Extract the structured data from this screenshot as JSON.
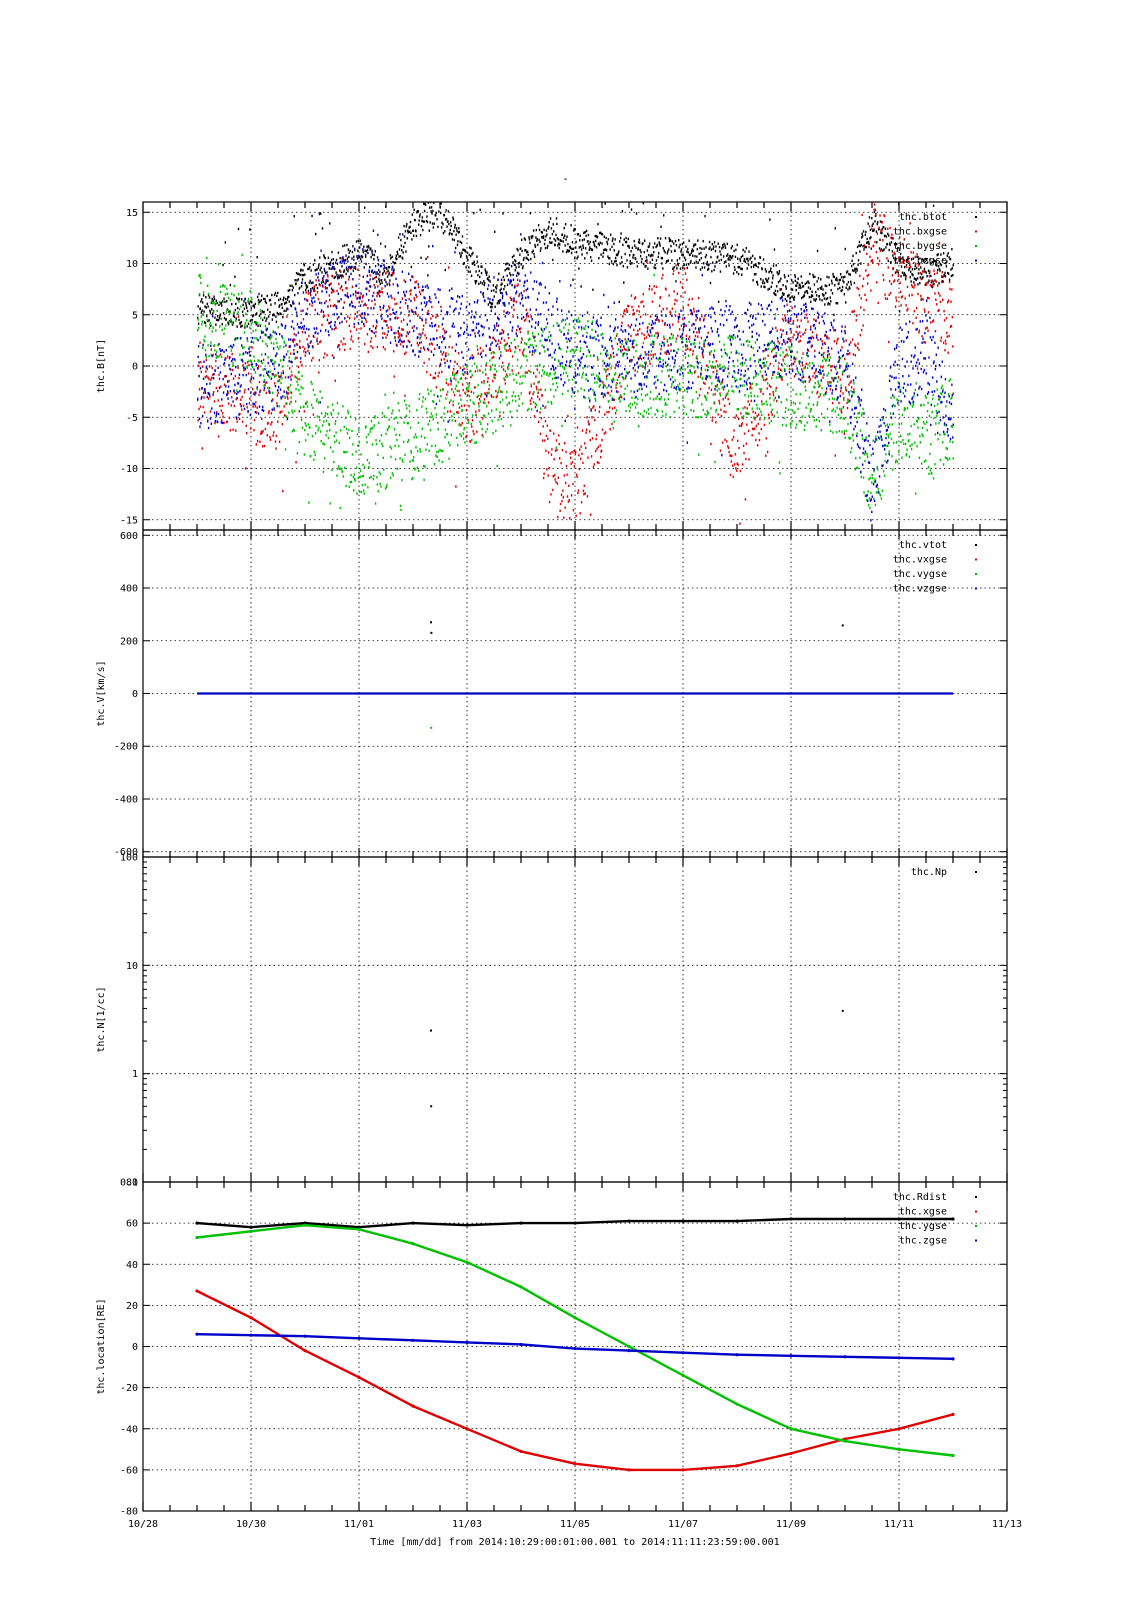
{
  "page_title": "-",
  "x_axis": {
    "tick_labels": [
      "10/28",
      "10/30",
      "11/01",
      "11/03",
      "11/05",
      "11/07",
      "11/09",
      "11/11",
      "11/13"
    ],
    "xlabel": "Time [mm/dd]  from 2014:10:29:00:01:00.001  to  2014:11:11:23:59:00.001"
  },
  "chart_data": [
    {
      "type": "scatter",
      "ylabel": "thc.B[nT]",
      "ylim": [
        -16,
        16
      ],
      "yticks": [
        "15",
        "10",
        "5",
        "0",
        "-5",
        "-10",
        "-15"
      ],
      "xlim": [
        "10/28",
        "11/13"
      ],
      "grid": true,
      "legend_position": "top-right",
      "series": [
        {
          "name": "thc.btot",
          "color": "#000000",
          "x": [
            "10/29",
            "10/30",
            "10/30 12:00",
            "10/31",
            "11/01",
            "11/01 12:00",
            "11/02",
            "11/02 12:00",
            "11/03 12:00",
            "11/04",
            "11/04 12:00",
            "11/05",
            "11/06",
            "11/07",
            "11/08",
            "11/09",
            "11/10",
            "11/10 12:00",
            "11/11",
            "11/11 12:00",
            "11/12"
          ],
          "values": [
            5.5,
            5.2,
            5.8,
            8.5,
            11,
            9,
            14,
            15,
            6.5,
            11,
            13,
            12,
            11,
            11,
            10.5,
            7.5,
            7.5,
            14,
            10,
            9,
            10
          ]
        },
        {
          "name": "thc.bxgse",
          "color": "#e00000",
          "x": [
            "10/29",
            "10/30",
            "10/30 12:00",
            "10/31",
            "11/01",
            "11/02",
            "11/03",
            "11/04",
            "11/04 12:00",
            "11/05",
            "11/06",
            "11/07",
            "11/08",
            "11/09",
            "11/10",
            "11/10 12:00",
            "11/11",
            "11/11 12:00",
            "11/12"
          ],
          "values": [
            -1.5,
            -3.5,
            -4.5,
            4,
            6,
            5,
            -4,
            5,
            -10,
            -12,
            3,
            6,
            -8,
            3,
            -1,
            12,
            9,
            6,
            5
          ]
        },
        {
          "name": "thc.bygse",
          "color": "#00c000",
          "x": [
            "10/29",
            "10/30",
            "10/30 12:00",
            "10/31",
            "11/01",
            "11/02",
            "11/03",
            "11/04",
            "11/05",
            "11/06",
            "11/07",
            "11/08",
            "11/09",
            "11/10",
            "11/10 12:00",
            "11/11",
            "11/11 12:00",
            "11/12"
          ],
          "values": [
            5,
            3.5,
            0,
            -5,
            -9,
            -7,
            -4,
            -1,
            1,
            -1,
            -1,
            -1,
            -2,
            -3,
            -11,
            -5,
            -7,
            -5
          ]
        },
        {
          "name": "thc.bzgse",
          "color": "#0000c8",
          "x": [
            "10/29",
            "10/30",
            "10/30 12:00",
            "10/31",
            "11/01",
            "11/02",
            "11/03",
            "11/04",
            "11/05",
            "11/06",
            "11/07",
            "11/08",
            "11/09",
            "11/10",
            "11/10 12:00",
            "11/11",
            "11/11 12:00",
            "11/12"
          ],
          "values": [
            -2,
            -1,
            0,
            5,
            8,
            5,
            3,
            6,
            1,
            0.5,
            1.5,
            2,
            3,
            0,
            -12,
            0,
            1,
            -5
          ]
        }
      ]
    },
    {
      "type": "scatter",
      "ylabel": "thc.V[km/s]",
      "ylim": [
        -620,
        620
      ],
      "yticks": [
        "600",
        "400",
        "200",
        "0",
        "-200",
        "-400",
        "-600"
      ],
      "xlim": [
        "10/28",
        "11/13"
      ],
      "grid": true,
      "legend_position": "top-right",
      "series": [
        {
          "name": "thc.vtot",
          "color": "#000000",
          "x": [
            "11/02 08:00",
            "11/02 08:10",
            "11/09 23:00"
          ],
          "values": [
            270,
            230,
            258
          ]
        },
        {
          "name": "thc.vxgse",
          "color": "#e00000",
          "x": [],
          "values": []
        },
        {
          "name": "thc.vygse",
          "color": "#00c000",
          "x": [
            "11/02 08:05"
          ],
          "values": [
            -130
          ]
        },
        {
          "name": "thc.vzgse",
          "color": "#0000c8",
          "x": [
            "10/29",
            "11/12"
          ],
          "values": [
            0,
            0
          ]
        }
      ]
    },
    {
      "type": "scatter",
      "ylabel": "thc.N[1/cc]",
      "yscale": "log",
      "ylim": [
        0.1,
        100
      ],
      "yticks": [
        "100",
        "10",
        "1",
        "0.1"
      ],
      "xlim": [
        "10/28",
        "11/13"
      ],
      "grid": true,
      "legend_position": "top-right",
      "series": [
        {
          "name": "thc.Np",
          "color": "#000000",
          "x": [
            "11/02 08:00",
            "11/02 08:05",
            "11/09 23:00"
          ],
          "values": [
            2.5,
            0.5,
            3.8
          ]
        }
      ]
    },
    {
      "type": "line",
      "ylabel": "thc.location[RE]",
      "ylim": [
        -80,
        80
      ],
      "yticks": [
        "80",
        "60",
        "40",
        "20",
        "0",
        "-20",
        "-40",
        "-60",
        "-80"
      ],
      "xlim": [
        "10/28",
        "11/13"
      ],
      "grid": true,
      "legend_position": "top-right",
      "series": [
        {
          "name": "thc.Rdist",
          "color": "#000000",
          "x": [
            "10/29",
            "10/30",
            "10/31",
            "11/01",
            "11/02",
            "11/03",
            "11/04",
            "11/05",
            "11/06",
            "11/07",
            "11/08",
            "11/09",
            "11/10",
            "11/11",
            "11/12"
          ],
          "values": [
            60,
            58,
            60,
            58,
            60,
            59,
            60,
            60,
            61,
            61,
            61,
            62,
            62,
            62,
            62
          ]
        },
        {
          "name": "thc.xgse",
          "color": "#e00000",
          "x": [
            "10/29",
            "10/30",
            "10/31",
            "11/01",
            "11/02",
            "11/03",
            "11/04",
            "11/05",
            "11/06",
            "11/07",
            "11/08",
            "11/09",
            "11/10",
            "11/11",
            "11/12"
          ],
          "values": [
            27,
            14,
            -2,
            -15,
            -29,
            -40,
            -51,
            -57,
            -60,
            -60,
            -58,
            -52,
            -45,
            -40,
            -33
          ]
        },
        {
          "name": "thc.ygse",
          "color": "#00c000",
          "x": [
            "10/29",
            "10/30",
            "10/31",
            "11/01",
            "11/02",
            "11/03",
            "11/04",
            "11/05",
            "11/06",
            "11/07",
            "11/08",
            "11/09",
            "11/10",
            "11/11",
            "11/12"
          ],
          "values": [
            53,
            56,
            59,
            57,
            50,
            41,
            29,
            14,
            0,
            -14,
            -28,
            -40,
            -46,
            -50,
            -53
          ]
        },
        {
          "name": "thc.zgse",
          "color": "#0000c8",
          "x": [
            "10/29",
            "10/30",
            "10/31",
            "11/01",
            "11/02",
            "11/03",
            "11/04",
            "11/05",
            "11/06",
            "11/07",
            "11/08",
            "11/09",
            "11/10",
            "11/11",
            "11/12"
          ],
          "values": [
            6,
            5.5,
            5,
            4,
            3,
            2,
            1,
            -1,
            -2,
            -3,
            -4,
            -4.5,
            -5,
            -5.5,
            -6
          ]
        }
      ]
    }
  ]
}
